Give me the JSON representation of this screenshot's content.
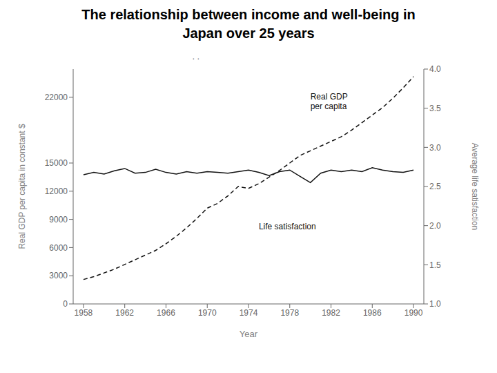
{
  "chart_data": {
    "type": "line",
    "title": "The relationship between income and well-being in\nJapan over 25 years",
    "x_label": "Year",
    "y_label": "Real GDP per capita in constant $",
    "y2_label": "Average life satisfaction",
    "x": [
      1958,
      1959,
      1960,
      1961,
      1962,
      1963,
      1964,
      1965,
      1966,
      1967,
      1968,
      1969,
      1970,
      1971,
      1972,
      1973,
      1974,
      1975,
      1976,
      1977,
      1978,
      1979,
      1980,
      1981,
      1982,
      1983,
      1984,
      1985,
      1986,
      1987,
      1988,
      1989,
      1990
    ],
    "series": [
      {
        "color": "#111111",
        "line_style": "dashed",
        "values": [
          2600,
          2900,
          3300,
          3700,
          4200,
          4700,
          5200,
          5700,
          6400,
          7200,
          8100,
          9100,
          10200,
          10700,
          11500,
          12500,
          12300,
          12800,
          13500,
          14200,
          15000,
          15800,
          16300,
          16800,
          17300,
          17800,
          18500,
          19300,
          20100,
          20900,
          21900,
          23000,
          24200
        ]
      },
      {
        "color": "#111111",
        "line_style": "solid",
        "axis": "y2",
        "values": [
          2.65,
          2.68,
          2.66,
          2.7,
          2.73,
          2.67,
          2.68,
          2.72,
          2.68,
          2.66,
          2.69,
          2.67,
          2.69,
          2.68,
          2.67,
          2.69,
          2.71,
          2.68,
          2.64,
          2.69,
          2.71,
          2.63,
          2.55,
          2.67,
          2.71,
          2.69,
          2.71,
          2.69,
          2.74,
          2.71,
          2.69,
          2.68,
          2.71
        ]
      }
    ],
    "xlim": [
      1957,
      1991
    ],
    "xticks": [
      1958,
      1962,
      1966,
      1970,
      1974,
      1978,
      1982,
      1986,
      1990
    ],
    "ylim": [
      0,
      25000
    ],
    "yticks": [
      0,
      3000,
      6000,
      9000,
      12000,
      15000,
      22000
    ],
    "y2lim": [
      1.0,
      4.0
    ],
    "y2ticks": [
      {
        "value": 1.0,
        "label": "1.0"
      },
      1.5,
      {
        "value": 2.0,
        "label": "2.0"
      },
      2.5,
      {
        "value": 3.0,
        "label": "3.0"
      },
      3.5,
      {
        "value": 4.0,
        "label": "4.0"
      }
    ],
    "grid": false,
    "annotations": [
      {
        "text": ". ."
      },
      {
        "text": "Real GDP\nper capita",
        "x": 1980,
        "y": 20500
      },
      {
        "text": "Life satisfaction",
        "x": 1975,
        "y": 8200
      }
    ]
  }
}
